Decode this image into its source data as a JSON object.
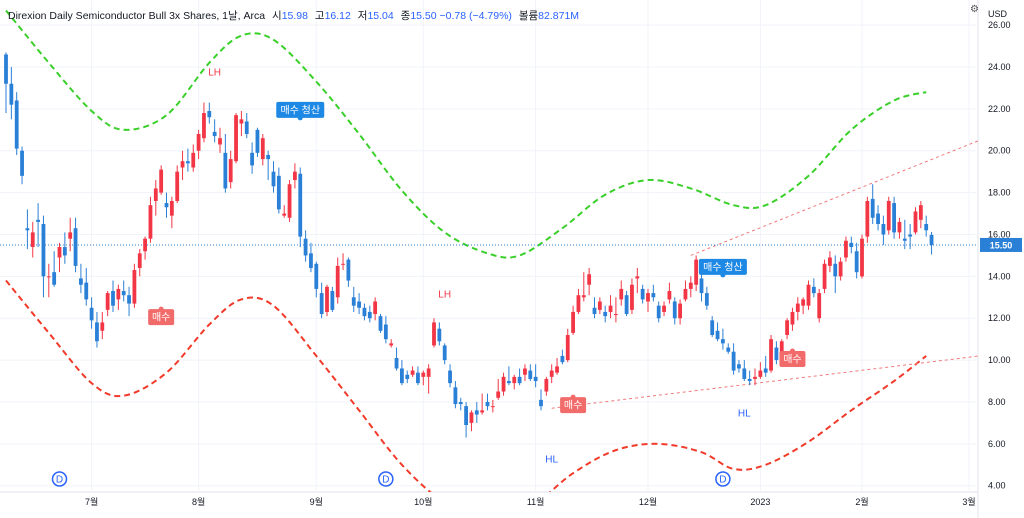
{
  "header": {
    "title": "Direxion Daily Semiconductor Bull 3x Shares, 1날, Arca",
    "open_label": "시",
    "open": "15.98",
    "high_label": "고",
    "high": "16.12",
    "low_label": "저",
    "low": "15.04",
    "close_label": "종",
    "close": "15.50",
    "change": "−0.78 (−4.79%)",
    "volume_label": "볼륨",
    "volume": "82.871M",
    "currency": "USD"
  },
  "colors": {
    "up": "#f23645",
    "down": "#2a7fd6",
    "upper_band": "#3ad02a",
    "lower_band": "#f23a2a",
    "trend": "#f07a7a",
    "price_line": "#2a7fd6"
  },
  "chart_data": {
    "type": "candlestick",
    "ylabel": "USD",
    "ylim": [
      3.7,
      27.2
    ],
    "y_ticks": [
      "26.00",
      "24.00",
      "22.00",
      "20.00",
      "18.00",
      "16.00",
      "14.00",
      "12.00",
      "10.00",
      "8.00",
      "6.00",
      "4.00"
    ],
    "x_ticks": [
      "7월",
      "8월",
      "9월",
      "10월",
      "11월",
      "12월",
      "2023",
      "2월",
      "3월"
    ],
    "last_price": "15.50",
    "ohlc": [
      [
        24.6,
        24.7,
        21.8,
        23.2
      ],
      [
        23.2,
        24.0,
        21.5,
        22.2
      ],
      [
        22.4,
        22.8,
        19.8,
        20.1
      ],
      [
        20.0,
        20.2,
        18.4,
        18.8
      ],
      [
        16.3,
        17.2,
        15.3,
        16.2
      ],
      [
        15.4,
        16.6,
        14.9,
        16.1
      ],
      [
        16.7,
        17.5,
        15.4,
        16.6
      ],
      [
        16.5,
        16.9,
        13.0,
        14.0
      ],
      [
        14.0,
        14.6,
        13.0,
        14.0
      ],
      [
        14.2,
        15.2,
        13.5,
        13.6
      ],
      [
        14.9,
        15.6,
        14.2,
        15.4
      ],
      [
        15.4,
        16.1,
        14.6,
        15.0
      ],
      [
        15.8,
        16.8,
        15.2,
        16.1
      ],
      [
        16.3,
        16.8,
        14.2,
        14.5
      ],
      [
        13.9,
        14.6,
        13.2,
        13.6
      ],
      [
        13.7,
        14.4,
        12.6,
        12.9
      ],
      [
        12.5,
        13.0,
        11.5,
        11.9
      ],
      [
        11.8,
        12.3,
        10.6,
        10.9
      ],
      [
        11.4,
        12.3,
        11.0,
        11.8
      ],
      [
        12.4,
        13.3,
        12.1,
        13.2
      ],
      [
        13.3,
        13.8,
        12.3,
        12.6
      ],
      [
        12.9,
        13.6,
        12.4,
        13.4
      ],
      [
        13.3,
        13.8,
        12.8,
        13.1
      ],
      [
        13.1,
        13.5,
        12.1,
        12.7
      ],
      [
        12.7,
        14.6,
        12.5,
        14.3
      ],
      [
        14.4,
        15.3,
        14.0,
        15.1
      ],
      [
        15.2,
        15.9,
        14.8,
        15.8
      ],
      [
        15.8,
        17.8,
        15.6,
        17.4
      ],
      [
        17.6,
        18.6,
        16.9,
        18.2
      ],
      [
        18.0,
        19.3,
        17.9,
        19.1
      ],
      [
        17.5,
        18.0,
        16.8,
        17.3
      ],
      [
        16.9,
        17.8,
        16.3,
        17.6
      ],
      [
        17.6,
        19.3,
        17.5,
        19.0
      ],
      [
        19.2,
        20.0,
        18.6,
        19.5
      ],
      [
        19.5,
        20.1,
        19.0,
        19.4
      ],
      [
        19.2,
        20.3,
        19.0,
        19.9
      ],
      [
        20.0,
        21.0,
        19.6,
        20.8
      ],
      [
        20.6,
        22.3,
        20.4,
        21.8
      ],
      [
        21.9,
        22.3,
        21.3,
        21.6
      ],
      [
        20.9,
        21.5,
        20.4,
        20.7
      ],
      [
        20.3,
        21.1,
        19.9,
        20.6
      ],
      [
        19.9,
        20.8,
        18.0,
        18.2
      ],
      [
        18.5,
        20.0,
        18.2,
        19.6
      ],
      [
        19.5,
        21.8,
        19.4,
        21.7
      ],
      [
        21.3,
        21.9,
        20.7,
        21.5
      ],
      [
        21.4,
        21.8,
        20.6,
        20.8
      ],
      [
        19.9,
        20.4,
        18.9,
        19.3
      ],
      [
        21.0,
        21.1,
        19.7,
        19.9
      ],
      [
        19.6,
        20.8,
        19.3,
        20.6
      ],
      [
        19.8,
        20.0,
        18.6,
        19.6
      ],
      [
        19.0,
        19.5,
        18.0,
        18.3
      ],
      [
        18.8,
        19.2,
        17.0,
        17.2
      ],
      [
        16.9,
        17.4,
        16.8,
        17.0
      ],
      [
        16.8,
        18.6,
        16.6,
        18.4
      ],
      [
        18.6,
        19.4,
        18.2,
        19.0
      ],
      [
        18.9,
        19.2,
        15.4,
        15.9
      ],
      [
        15.8,
        16.2,
        14.7,
        15.0
      ],
      [
        15.1,
        15.6,
        14.2,
        14.4
      ],
      [
        14.6,
        14.7,
        13.0,
        13.4
      ],
      [
        13.2,
        13.7,
        12.0,
        12.2
      ],
      [
        12.3,
        13.6,
        12.1,
        13.5
      ],
      [
        13.3,
        13.5,
        12.3,
        12.4
      ],
      [
        13.0,
        14.9,
        12.7,
        14.5
      ],
      [
        14.6,
        15.1,
        14.3,
        14.6
      ],
      [
        14.8,
        14.9,
        13.5,
        13.8
      ],
      [
        13.0,
        13.5,
        12.3,
        12.6
      ],
      [
        12.8,
        13.2,
        12.2,
        12.5
      ],
      [
        12.5,
        12.7,
        11.9,
        12.1
      ],
      [
        12.3,
        12.6,
        11.8,
        12.0
      ],
      [
        12.2,
        13.0,
        11.9,
        12.8
      ],
      [
        12.1,
        12.2,
        11.3,
        11.4
      ],
      [
        11.7,
        12.1,
        10.8,
        11.0
      ],
      [
        10.7,
        11.0,
        10.6,
        10.8
      ],
      [
        10.1,
        10.6,
        9.5,
        9.6
      ],
      [
        9.6,
        10.0,
        8.8,
        8.9
      ],
      [
        9.3,
        9.5,
        8.9,
        9.1
      ],
      [
        9.3,
        9.7,
        9.2,
        9.5
      ],
      [
        9.4,
        9.7,
        8.8,
        8.9
      ],
      [
        9.2,
        9.5,
        8.8,
        9.4
      ],
      [
        9.2,
        9.8,
        8.4,
        9.6
      ],
      [
        10.7,
        12.0,
        10.6,
        11.8
      ],
      [
        11.5,
        11.8,
        10.7,
        10.9
      ],
      [
        10.7,
        10.8,
        9.8,
        10.0
      ],
      [
        9.5,
        9.8,
        8.7,
        8.9
      ],
      [
        8.7,
        9.0,
        7.7,
        7.9
      ],
      [
        8.0,
        8.2,
        7.6,
        7.9
      ],
      [
        7.8,
        8.0,
        6.3,
        6.9
      ],
      [
        7.0,
        7.6,
        6.6,
        7.5
      ],
      [
        7.6,
        8.0,
        7.0,
        7.4
      ],
      [
        7.5,
        8.4,
        7.4,
        7.6
      ],
      [
        8.0,
        8.4,
        7.6,
        7.8
      ],
      [
        7.8,
        8.1,
        7.5,
        7.8
      ],
      [
        8.2,
        9.1,
        8.1,
        8.5
      ],
      [
        8.5,
        9.4,
        8.3,
        9.2
      ],
      [
        9.0,
        9.7,
        8.8,
        8.9
      ],
      [
        8.9,
        9.3,
        8.6,
        9.2
      ],
      [
        9.2,
        9.6,
        8.8,
        8.9
      ],
      [
        9.3,
        9.8,
        9.0,
        9.6
      ],
      [
        9.5,
        9.8,
        9.0,
        9.1
      ],
      [
        9.2,
        9.8,
        8.7,
        9.0
      ],
      [
        8.1,
        8.6,
        7.6,
        7.8
      ],
      [
        8.5,
        9.2,
        8.3,
        9.1
      ],
      [
        9.2,
        9.8,
        8.9,
        9.5
      ],
      [
        9.4,
        10.1,
        9.3,
        9.7
      ],
      [
        10.2,
        10.5,
        9.8,
        9.9
      ],
      [
        10.0,
        11.5,
        9.9,
        11.2
      ],
      [
        11.3,
        12.6,
        11.2,
        12.3
      ],
      [
        12.3,
        13.4,
        12.2,
        13.1
      ],
      [
        13.0,
        14.2,
        12.8,
        13.1
      ],
      [
        13.6,
        14.4,
        13.1,
        14.1
      ],
      [
        12.5,
        13.0,
        12.0,
        12.2
      ],
      [
        12.4,
        13.0,
        12.2,
        12.8
      ],
      [
        12.3,
        12.6,
        11.8,
        12.1
      ],
      [
        12.3,
        13.1,
        12.0,
        12.6
      ],
      [
        12.2,
        13.0,
        11.8,
        12.2
      ],
      [
        12.9,
        13.8,
        12.6,
        13.4
      ],
      [
        13.1,
        13.3,
        12.1,
        12.2
      ],
      [
        12.4,
        13.9,
        12.2,
        13.6
      ],
      [
        13.9,
        14.4,
        13.2,
        14.0
      ],
      [
        13.4,
        13.6,
        12.7,
        12.9
      ],
      [
        12.8,
        13.4,
        12.3,
        13.2
      ],
      [
        13.2,
        13.6,
        12.8,
        13.0
      ],
      [
        12.6,
        12.8,
        11.8,
        12.0
      ],
      [
        12.3,
        12.8,
        12.1,
        12.6
      ],
      [
        12.9,
        13.7,
        12.7,
        13.3
      ],
      [
        12.8,
        13.0,
        11.7,
        12.0
      ],
      [
        12.0,
        12.9,
        11.7,
        12.7
      ],
      [
        12.9,
        13.8,
        12.8,
        13.4
      ],
      [
        13.4,
        14.0,
        13.0,
        13.7
      ],
      [
        13.6,
        15.0,
        13.3,
        14.8
      ],
      [
        13.9,
        14.2,
        12.8,
        13.2
      ],
      [
        13.2,
        13.5,
        12.4,
        12.6
      ],
      [
        11.9,
        12.1,
        11.1,
        11.2
      ],
      [
        11.4,
        11.8,
        10.9,
        11.0
      ],
      [
        11.0,
        11.5,
        10.5,
        10.8
      ],
      [
        10.6,
        10.8,
        10.3,
        10.4
      ],
      [
        10.4,
        10.8,
        9.3,
        9.5
      ],
      [
        9.8,
        10.0,
        9.4,
        9.6
      ],
      [
        9.6,
        10.0,
        9.0,
        9.1
      ],
      [
        9.1,
        9.5,
        8.8,
        9.0
      ],
      [
        9.1,
        9.6,
        8.8,
        9.2
      ],
      [
        9.2,
        9.9,
        9.1,
        9.5
      ],
      [
        9.6,
        10.2,
        9.2,
        9.4
      ],
      [
        9.5,
        11.2,
        9.4,
        11.0
      ],
      [
        10.6,
        10.9,
        9.8,
        10.0
      ],
      [
        10.4,
        11.0,
        10.3,
        10.9
      ],
      [
        11.2,
        12.0,
        11.0,
        11.9
      ],
      [
        11.7,
        12.5,
        11.4,
        12.3
      ],
      [
        12.3,
        13.0,
        11.9,
        12.7
      ],
      [
        12.6,
        13.0,
        12.2,
        12.9
      ],
      [
        12.6,
        13.8,
        12.4,
        13.6
      ],
      [
        13.5,
        13.9,
        13.0,
        13.2
      ],
      [
        12.0,
        13.4,
        11.8,
        13.2
      ],
      [
        13.4,
        14.8,
        13.2,
        14.6
      ],
      [
        14.5,
        15.2,
        14.2,
        14.9
      ],
      [
        14.6,
        15.0,
        13.2,
        14.0
      ],
      [
        14.0,
        14.9,
        13.8,
        14.7
      ],
      [
        14.9,
        15.9,
        14.7,
        15.7
      ],
      [
        15.6,
        15.9,
        15.1,
        15.4
      ],
      [
        15.2,
        15.6,
        13.9,
        14.2
      ],
      [
        14.0,
        16.0,
        13.9,
        15.8
      ],
      [
        15.9,
        17.8,
        15.6,
        17.6
      ],
      [
        17.7,
        18.4,
        16.5,
        16.8
      ],
      [
        17.0,
        17.4,
        16.2,
        16.5
      ],
      [
        16.5,
        16.9,
        15.5,
        16.0
      ],
      [
        16.2,
        17.8,
        16.0,
        17.6
      ],
      [
        17.5,
        17.8,
        15.8,
        16.1
      ],
      [
        16.1,
        16.8,
        15.8,
        16.6
      ],
      [
        15.8,
        16.7,
        15.3,
        15.7
      ],
      [
        16.0,
        16.5,
        15.3,
        15.9
      ],
      [
        16.1,
        17.3,
        16.0,
        17.1
      ],
      [
        16.7,
        17.6,
        16.3,
        17.4
      ],
      [
        16.5,
        16.9,
        15.9,
        16.2
      ],
      [
        15.98,
        16.12,
        15.04,
        15.5
      ]
    ],
    "upper_band": [
      [
        0,
        26.7
      ],
      [
        8,
        24.2
      ],
      [
        16,
        21.9
      ],
      [
        22,
        21.0
      ],
      [
        30,
        21.7
      ],
      [
        38,
        24.2
      ],
      [
        44,
        25.5
      ],
      [
        50,
        25.3
      ],
      [
        58,
        23.3
      ],
      [
        66,
        20.8
      ],
      [
        74,
        18.1
      ],
      [
        82,
        16.1
      ],
      [
        90,
        15.1
      ],
      [
        96,
        15.0
      ],
      [
        104,
        16.3
      ],
      [
        112,
        17.9
      ],
      [
        120,
        18.6
      ],
      [
        128,
        18.2
      ],
      [
        136,
        17.4
      ],
      [
        142,
        17.4
      ],
      [
        150,
        18.8
      ],
      [
        158,
        21.0
      ],
      [
        166,
        22.4
      ],
      [
        172,
        22.8
      ]
    ],
    "lower_band": [
      [
        0,
        13.8
      ],
      [
        8,
        11.3
      ],
      [
        16,
        8.9
      ],
      [
        22,
        8.3
      ],
      [
        30,
        9.4
      ],
      [
        38,
        11.7
      ],
      [
        44,
        12.9
      ],
      [
        50,
        12.6
      ],
      [
        58,
        10.2
      ],
      [
        66,
        7.6
      ],
      [
        74,
        5.0
      ],
      [
        82,
        3.2
      ],
      [
        90,
        2.5
      ],
      [
        98,
        3.0
      ],
      [
        106,
        4.6
      ],
      [
        114,
        5.7
      ],
      [
        122,
        6.0
      ],
      [
        130,
        5.6
      ],
      [
        136,
        4.8
      ],
      [
        142,
        5.0
      ],
      [
        150,
        6.1
      ],
      [
        158,
        7.6
      ],
      [
        166,
        9.0
      ],
      [
        172,
        10.2
      ]
    ],
    "annotations": [
      {
        "text": "LH",
        "index": 39,
        "price": 23.6,
        "kind": "label-up"
      },
      {
        "text": "매수 청산",
        "index": 55,
        "price": 21.95,
        "kind": "badge-blue"
      },
      {
        "text": "매수",
        "index": 29,
        "price": 12.05,
        "kind": "badge-red"
      },
      {
        "text": "LH",
        "index": 82,
        "price": 13.0,
        "kind": "label-up"
      },
      {
        "text": "HL",
        "index": 102,
        "price": 5.1,
        "kind": "label-down"
      },
      {
        "text": "매수",
        "index": 106,
        "price": 7.85,
        "kind": "badge-red"
      },
      {
        "text": "매수 청산",
        "index": 134,
        "price": 14.45,
        "kind": "badge-blue"
      },
      {
        "text": "HL",
        "index": 138,
        "price": 7.3,
        "kind": "label-down"
      },
      {
        "text": "매수",
        "index": 147,
        "price": 10.05,
        "kind": "badge-red"
      }
    ],
    "events": [
      {
        "text": "D",
        "index": 10
      },
      {
        "text": "D",
        "index": 71
      },
      {
        "text": "D",
        "index": 134
      }
    ]
  }
}
